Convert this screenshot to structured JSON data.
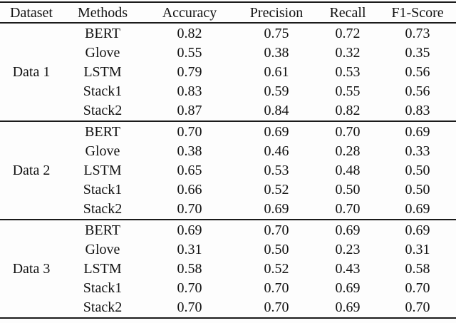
{
  "chart_data": {
    "type": "table",
    "columns": [
      "Dataset",
      "Methods",
      "Accuracy",
      "Precision",
      "Recall",
      "F1-Score"
    ],
    "groups": [
      {
        "dataset": "Data 1",
        "rows": [
          {
            "method": "BERT",
            "values": [
              "0.82",
              "0.75",
              "0.72",
              "0.73"
            ]
          },
          {
            "method": "Glove",
            "values": [
              "0.55",
              "0.38",
              "0.32",
              "0.35"
            ]
          },
          {
            "method": "LSTM",
            "values": [
              "0.79",
              "0.61",
              "0.53",
              "0.56"
            ]
          },
          {
            "method": "Stack1",
            "values": [
              "0.83",
              "0.59",
              "0.55",
              "0.56"
            ]
          },
          {
            "method": "Stack2",
            "values": [
              "0.87",
              "0.84",
              "0.82",
              "0.83"
            ]
          }
        ]
      },
      {
        "dataset": "Data 2",
        "rows": [
          {
            "method": "BERT",
            "values": [
              "0.70",
              "0.69",
              "0.70",
              "0.69"
            ]
          },
          {
            "method": "Glove",
            "values": [
              "0.38",
              "0.46",
              "0.28",
              "0.33"
            ]
          },
          {
            "method": "LSTM",
            "values": [
              "0.65",
              "0.53",
              "0.48",
              "0.50"
            ]
          },
          {
            "method": "Stack1",
            "values": [
              "0.66",
              "0.52",
              "0.50",
              "0.50"
            ]
          },
          {
            "method": "Stack2",
            "values": [
              "0.70",
              "0.69",
              "0.70",
              "0.69"
            ]
          }
        ]
      },
      {
        "dataset": "Data 3",
        "rows": [
          {
            "method": "BERT",
            "values": [
              "0.69",
              "0.70",
              "0.69",
              "0.69"
            ]
          },
          {
            "method": "Glove",
            "values": [
              "0.31",
              "0.50",
              "0.23",
              "0.31"
            ]
          },
          {
            "method": "LSTM",
            "values": [
              "0.58",
              "0.52",
              "0.43",
              "0.58"
            ]
          },
          {
            "method": "Stack1",
            "values": [
              "0.70",
              "0.70",
              "0.69",
              "0.70"
            ]
          },
          {
            "method": "Stack2",
            "values": [
              "0.70",
              "0.70",
              "0.69",
              "0.70"
            ]
          }
        ]
      }
    ],
    "rules_color": "#1b1b1b",
    "text_color": "#121212",
    "background_color": "#fdfdfd"
  }
}
